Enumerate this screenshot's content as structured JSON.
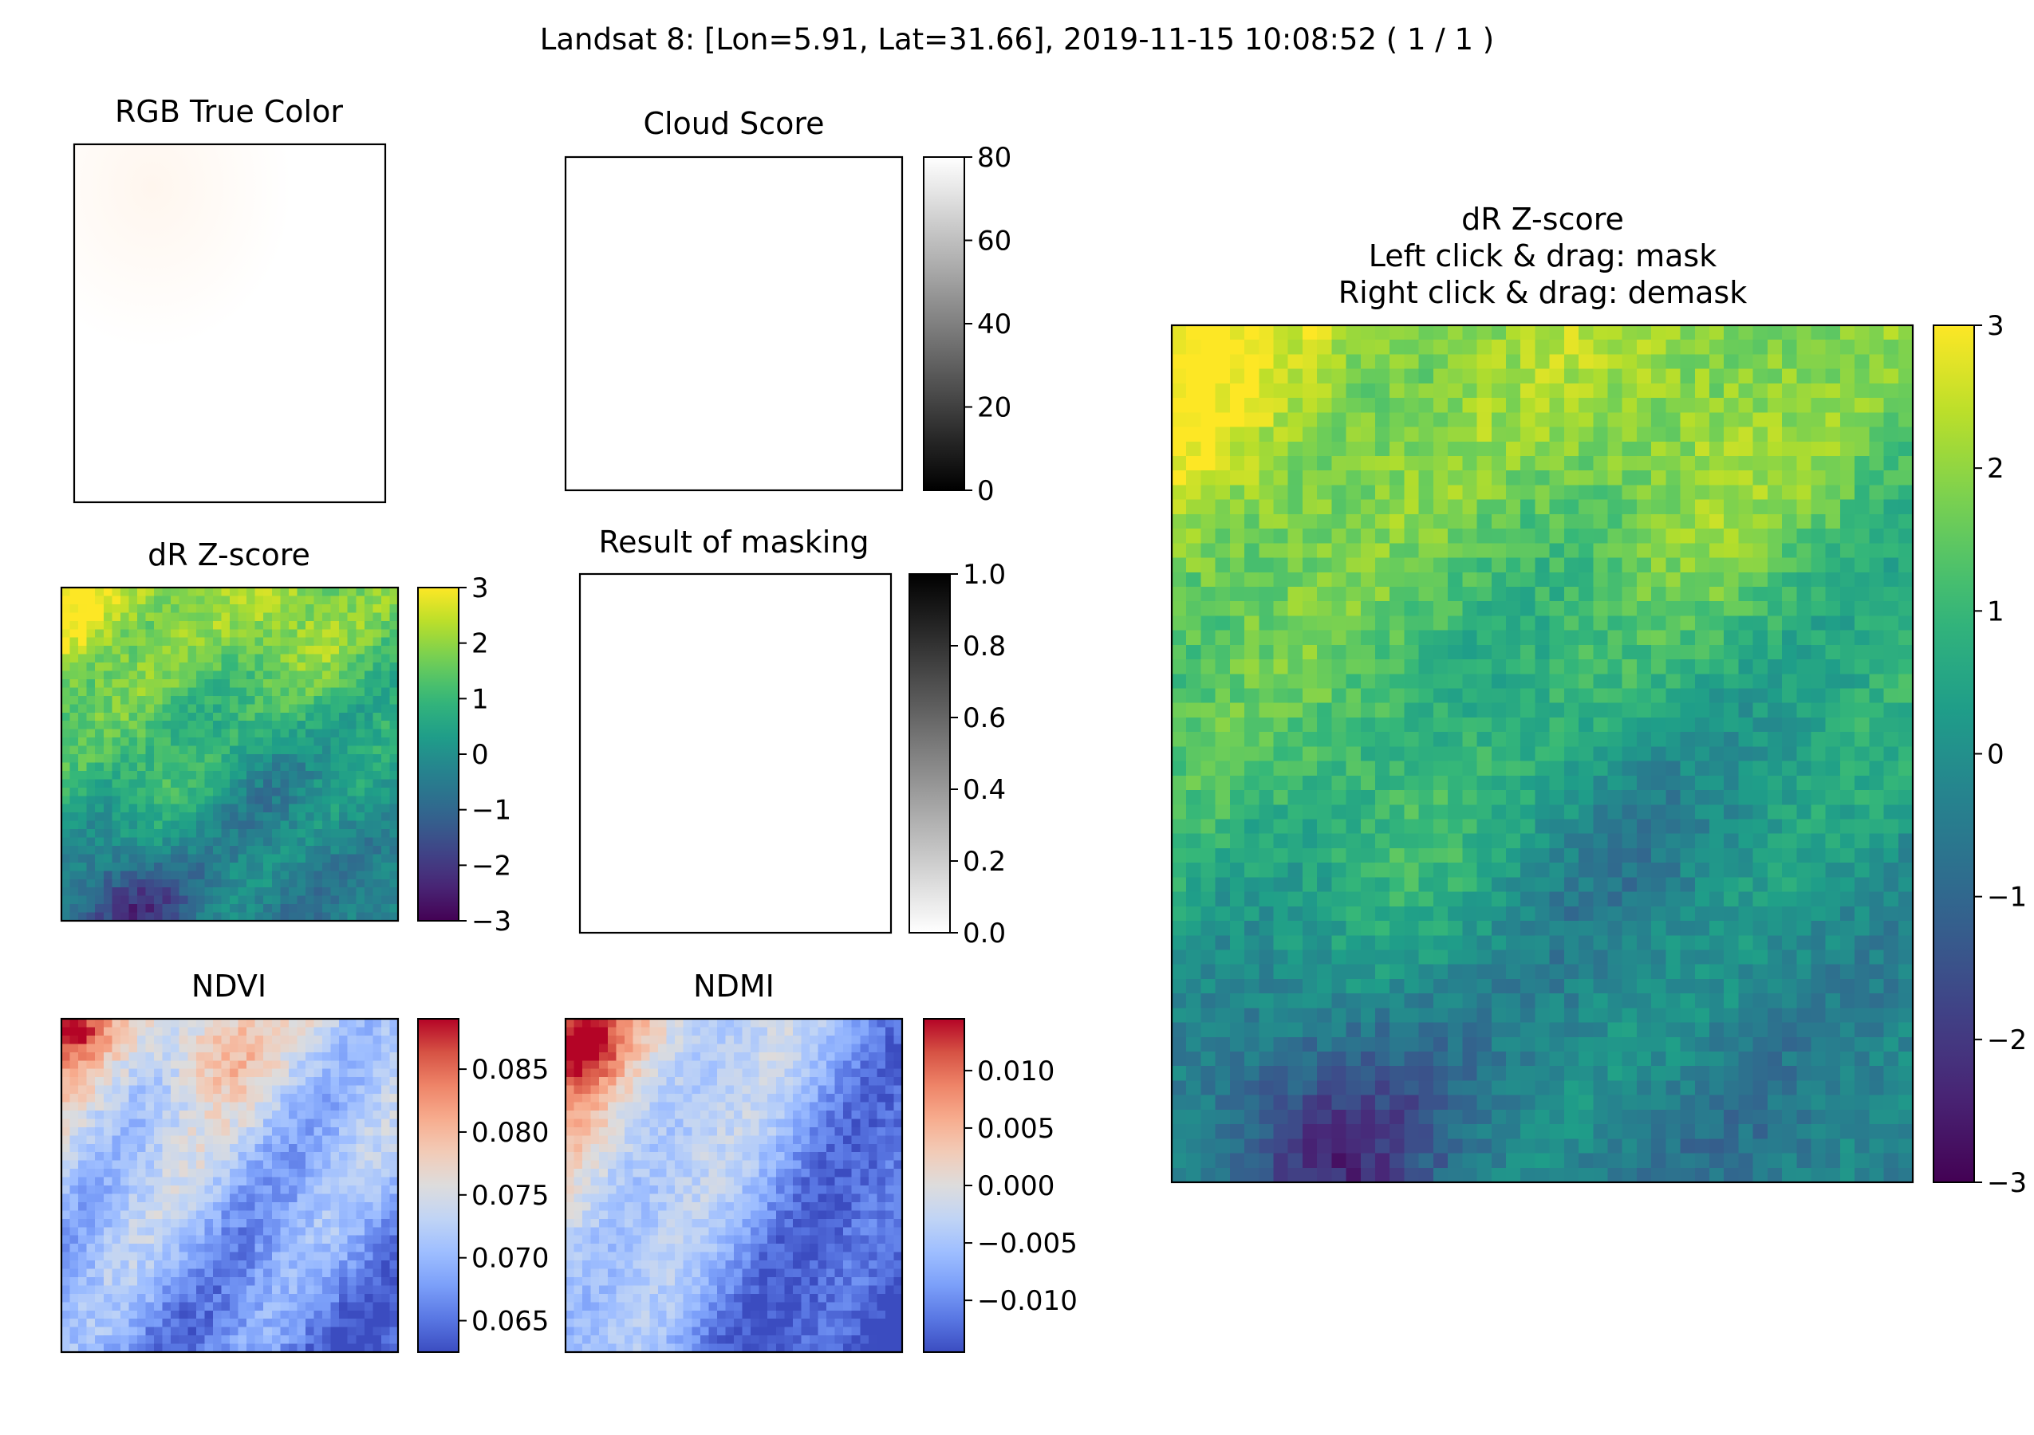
{
  "figure": {
    "suptitle": "Landsat 8: [Lon=5.91, Lat=31.66], 2019-11-15 10:08:52 ( 1 / 1 )"
  },
  "colors": {
    "background": "#ffffff",
    "axes_edge": "#000000",
    "rgb_tint": "#fff6ee"
  },
  "chart_data": [
    {
      "id": "rgb",
      "type": "heatmap",
      "title": "RGB True Color",
      "colormap": "rgb",
      "values": "near-white image with faint warm tint in top-left"
    },
    {
      "id": "cloud",
      "type": "heatmap",
      "title": "Cloud Score",
      "colormap": "gray",
      "clim": [
        0,
        80
      ],
      "colorbar_ticks": [
        "0",
        "20",
        "40",
        "60",
        "80"
      ],
      "fill_value": 80
    },
    {
      "id": "dr_small",
      "type": "heatmap",
      "title": "dR Z-score",
      "colormap": "viridis",
      "clim": [
        -3,
        3
      ],
      "colorbar_ticks": [
        "−3",
        "−2",
        "−1",
        "0",
        "1",
        "2",
        "3"
      ],
      "grid": [
        40,
        40
      ]
    },
    {
      "id": "mask",
      "type": "heatmap",
      "title": "Result of masking",
      "colormap": "gray_r",
      "clim": [
        0.0,
        1.0
      ],
      "colorbar_ticks": [
        "0.0",
        "0.2",
        "0.4",
        "0.6",
        "0.8",
        "1.0"
      ],
      "fill_value": 0.0
    },
    {
      "id": "ndvi",
      "type": "heatmap",
      "title": "NDVI",
      "colormap": "coolwarm",
      "clim": [
        0.0625,
        0.089
      ],
      "colorbar_ticks": [
        {
          "value": 0.065,
          "label": "0.065"
        },
        {
          "value": 0.07,
          "label": "0.070"
        },
        {
          "value": 0.075,
          "label": "0.075"
        },
        {
          "value": 0.08,
          "label": "0.080"
        },
        {
          "value": 0.085,
          "label": "0.085"
        }
      ],
      "grid": [
        40,
        40
      ]
    },
    {
      "id": "ndmi",
      "type": "heatmap",
      "title": "NDMI",
      "colormap": "coolwarm",
      "clim": [
        -0.0145,
        0.0145
      ],
      "colorbar_ticks": [
        {
          "value": -0.01,
          "label": "−0.010"
        },
        {
          "value": -0.005,
          "label": "−0.005"
        },
        {
          "value": 0.0,
          "label": "0.000"
        },
        {
          "value": 0.005,
          "label": "0.005"
        },
        {
          "value": 0.01,
          "label": "0.010"
        }
      ],
      "grid": [
        40,
        40
      ]
    },
    {
      "id": "dr_large",
      "type": "heatmap",
      "title_lines": [
        "dR Z-score",
        "Left click & drag: mask",
        "Right click & drag: demask"
      ],
      "colormap": "viridis",
      "clim": [
        -3,
        3
      ],
      "colorbar_ticks": [
        "−3",
        "−2",
        "−1",
        "0",
        "1",
        "2",
        "3"
      ],
      "grid": [
        51,
        59
      ]
    }
  ]
}
